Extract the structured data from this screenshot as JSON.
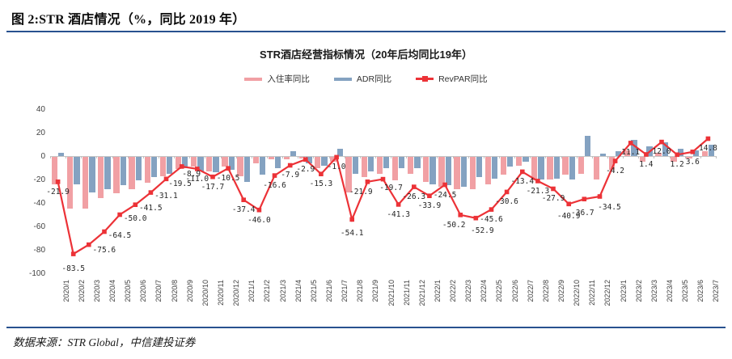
{
  "page": {
    "header_title": "图 2:STR 酒店情况（%，同比 2019 年）",
    "footer_source": "数据来源：STR Global，中信建投证券"
  },
  "colors": {
    "occupancy_bar": "#f1a0a4",
    "adr_bar": "#84a2c1",
    "revpar_line": "#ec3237",
    "header_rule": "#28518f",
    "axis_text": "#404040",
    "data_label_text": "#262626"
  },
  "chart_data": {
    "type": "bar",
    "subtype": "combo-bar-line",
    "title": "STR酒店经营指标情况（20年后均同比19年）",
    "legend_position": "top",
    "grid": false,
    "ylim": [
      -100,
      40
    ],
    "yticks": [
      40,
      20,
      0,
      -20,
      -40,
      -60,
      -80,
      -100
    ],
    "x_tick_rotation": -90,
    "categories": [
      "2020/1",
      "2020/2",
      "2020/3",
      "2020/4",
      "2020/5",
      "2020/6",
      "2020/7",
      "2020/8",
      "2020/9",
      "2020/10",
      "2020/11",
      "2020/12",
      "2021/1",
      "2021/2",
      "2021/3",
      "2021/4",
      "2021/5",
      "2021/6",
      "2021/7",
      "2021/8",
      "2021/9",
      "2021/10",
      "2021/11",
      "2021/12",
      "2022/1",
      "2022/2",
      "2022/3",
      "2022/4",
      "2022/5",
      "2022/6",
      "2022/7",
      "2022/8",
      "2022/9",
      "2022/10",
      "2022/11",
      "2022/12",
      "2023/1",
      "2023/2",
      "2023/3",
      "2023/4",
      "2023/5",
      "2023/6",
      "2023/7"
    ],
    "series": [
      {
        "name": "入住率同比",
        "kind": "bar",
        "color": "#f1a0a4",
        "values_estimated": true,
        "values": [
          -24,
          -45,
          -45,
          -36,
          -32,
          -28,
          -23,
          -17,
          -11,
          -9,
          -13,
          -9,
          -17,
          -6,
          -3,
          -3,
          -2,
          -10,
          -5,
          -31,
          -18,
          -15,
          -21,
          -15,
          -22,
          -26,
          -28,
          -28,
          -24,
          -16,
          -8,
          -21,
          -20,
          -16,
          -15,
          -20,
          -12,
          5,
          -5,
          3,
          -5,
          -2,
          4
        ]
      },
      {
        "name": "ADR同比",
        "kind": "bar",
        "color": "#84a2c1",
        "values_estimated": true,
        "values": [
          3,
          -24,
          -31,
          -28,
          -25,
          -21,
          -18,
          -15,
          -10,
          -13,
          -14,
          -12,
          -22,
          -16,
          -10,
          4,
          -6,
          -8,
          6,
          -15,
          -13,
          -10,
          -10,
          -10,
          -24,
          -25,
          -26,
          -18,
          -19,
          -9,
          -5,
          -20,
          -19,
          -20,
          17,
          2,
          4,
          14,
          8,
          12,
          6,
          5,
          10
        ]
      },
      {
        "name": "RevPAR同比",
        "kind": "line",
        "color": "#ec3237",
        "data_labels": true,
        "values": [
          -21.9,
          -83.5,
          -75.6,
          -64.5,
          -50.0,
          -41.5,
          -31.1,
          -19.5,
          -8.9,
          -11.0,
          -17.7,
          -10.5,
          -37.4,
          -46.0,
          -16.6,
          -7.9,
          -2.9,
          -15.3,
          -1.0,
          -54.1,
          -21.9,
          -19.7,
          -41.3,
          -26.3,
          -33.9,
          -24.5,
          -50.2,
          -52.9,
          -45.6,
          -30.6,
          -13.4,
          -21.3,
          -27.9,
          -40.9,
          -36.7,
          -34.5,
          -4.2,
          11.1,
          1.4,
          12.0,
          1.2,
          3.6,
          14.8
        ]
      }
    ]
  }
}
